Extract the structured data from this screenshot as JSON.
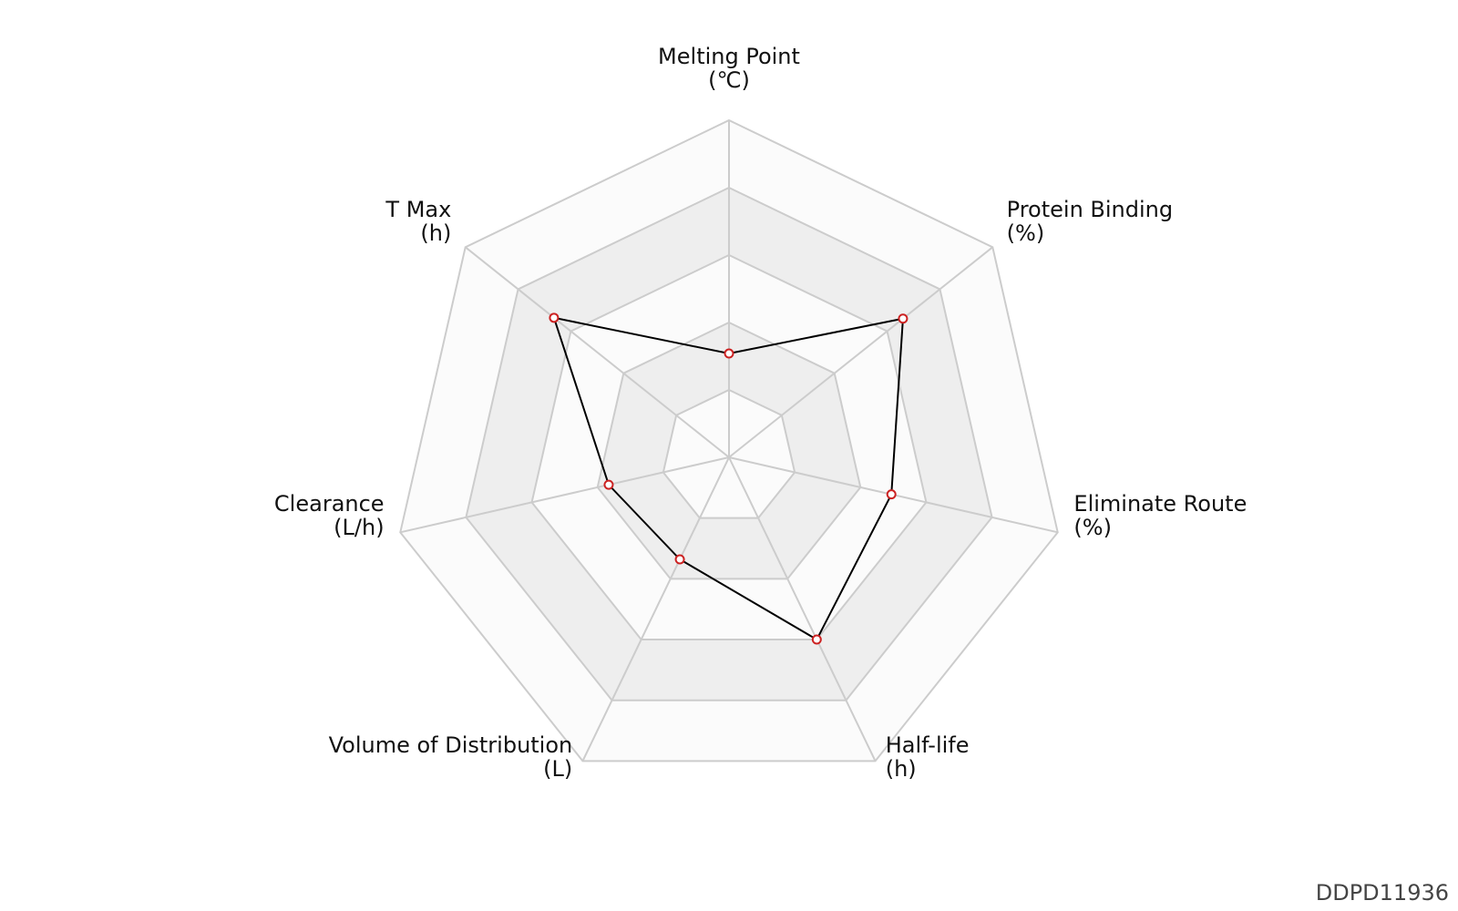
{
  "chart_data": {
    "type": "radar",
    "title": "",
    "axes": [
      {
        "name": "Melting Point",
        "unit": "(℃)"
      },
      {
        "name": "Protein Binding",
        "unit": "(%)"
      },
      {
        "name": "Eliminate Route",
        "unit": "(%)"
      },
      {
        "name": "Half-life",
        "unit": "(h)"
      },
      {
        "name": "Volume of Distribution",
        "unit": "(L)"
      },
      {
        "name": "Clearance",
        "unit": "(L/h)"
      },
      {
        "name": "T Max",
        "unit": "(h)"
      }
    ],
    "levels": 5,
    "range": [
      0,
      5
    ],
    "series": [
      {
        "values": [
          1.54,
          3.3,
          2.47,
          3.0,
          1.68,
          1.83,
          3.32
        ]
      }
    ],
    "colors": {
      "series_line": "#000000",
      "marker_edge": "#cc2222",
      "marker_fill": "#ffffff",
      "grid_line": "#cccccc",
      "band_shaded": "#eeeeee",
      "band_light": "#fbfbfb"
    }
  },
  "footer": {
    "id_label": "DDPD11936"
  }
}
